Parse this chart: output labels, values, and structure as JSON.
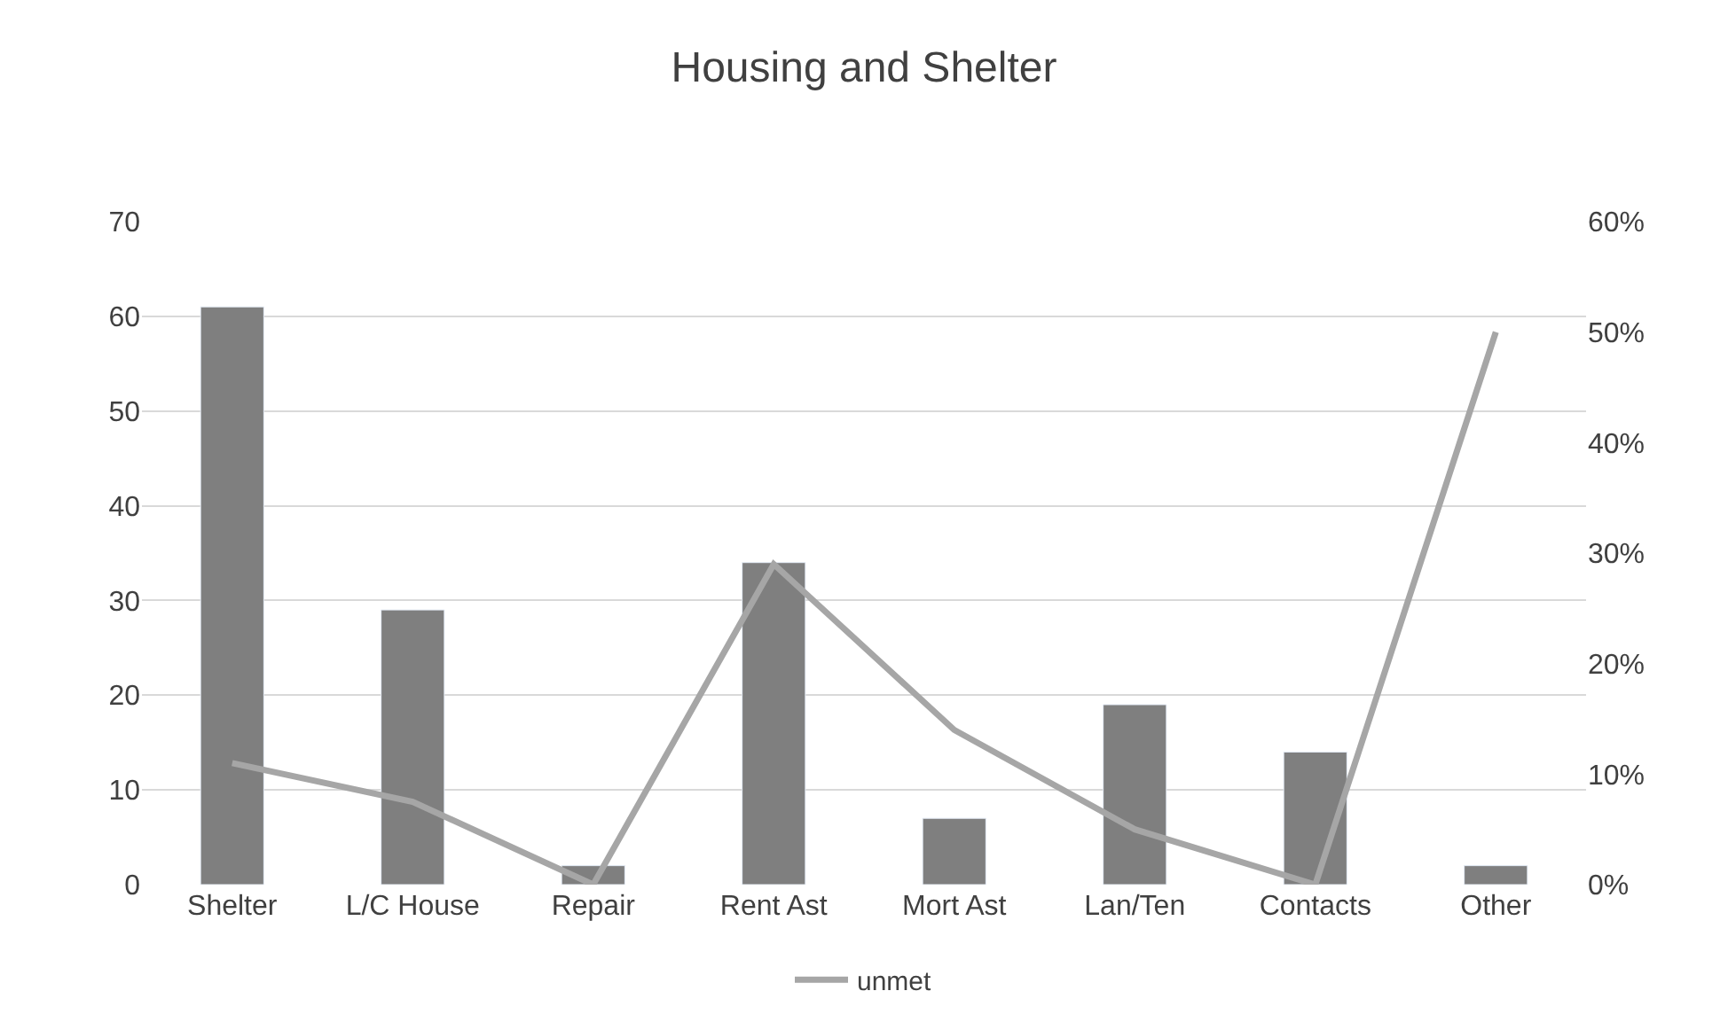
{
  "chart_data": {
    "type": "bar",
    "title": "Housing and Shelter",
    "categories": [
      "Shelter",
      "L/C House",
      "Repair",
      "Rent Ast",
      "Mort Ast",
      "Lan/Ten",
      "Contacts",
      "Other"
    ],
    "series": [
      {
        "color": "#7f7f7f",
        "values": [
          61,
          29,
          2,
          34,
          7,
          19,
          14,
          2
        ]
      },
      {
        "name": "unmet",
        "type": "line",
        "axis": "y2",
        "color": "#a6a6a6",
        "values": [
          0.11,
          0.075,
          0,
          0.29,
          0.14,
          0.05,
          0,
          0.5
        ]
      }
    ],
    "ylim": [
      0,
      70
    ],
    "yticks": [
      0,
      10,
      20,
      30,
      40,
      50,
      60,
      70
    ],
    "y2lim": [
      0,
      0.6
    ],
    "y2ticks": [
      {
        "value": 0,
        "label": "0%"
      },
      {
        "value": 0.1,
        "label": "10%"
      },
      {
        "value": 0.2,
        "label": "20%"
      },
      {
        "value": 0.3,
        "label": "30%"
      },
      {
        "value": 0.4,
        "label": "40%"
      },
      {
        "value": 0.5,
        "label": "50%"
      },
      {
        "value": 0.6,
        "label": "60%"
      }
    ],
    "grid": "y",
    "legend": "bottom",
    "marker": "none",
    "line_style": "solid"
  }
}
